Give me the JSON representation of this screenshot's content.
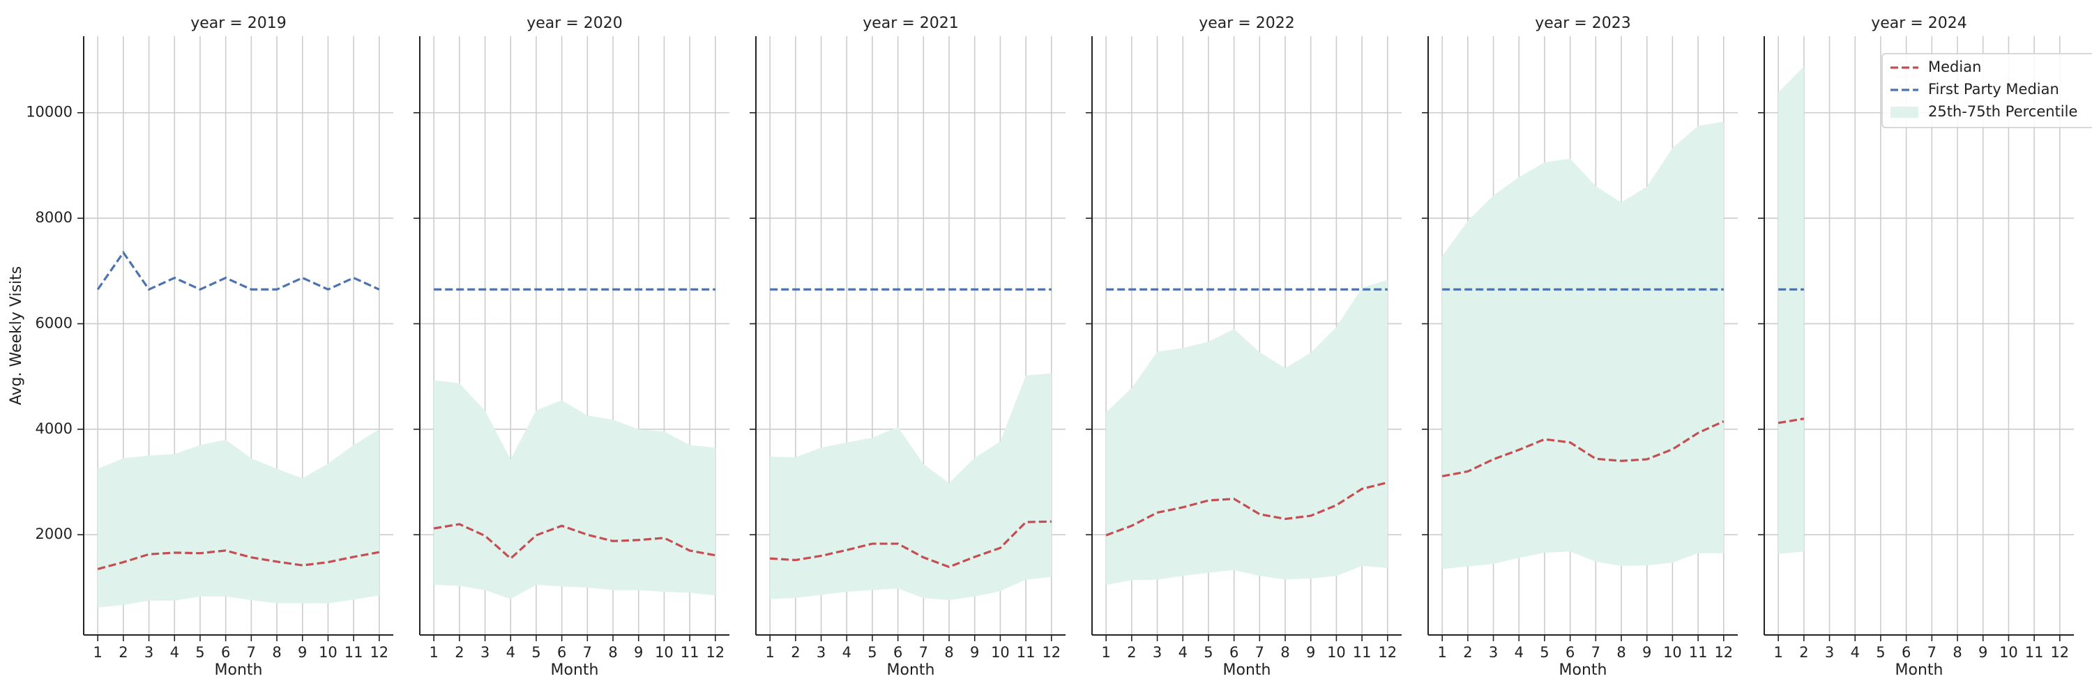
{
  "chart_data": [
    {
      "type": "line",
      "title": "year = 2019",
      "xlabel": "Month",
      "ylabel": "Avg. Weekly Visits",
      "x": [
        1,
        2,
        3,
        4,
        5,
        6,
        7,
        8,
        9,
        10,
        11,
        12
      ],
      "xticks": [
        1,
        2,
        3,
        4,
        5,
        6,
        7,
        8,
        9,
        10,
        11,
        12
      ],
      "xlim": [
        0.45,
        12.55
      ],
      "ylim": [
        100,
        11450
      ],
      "yticks": [
        2000,
        4000,
        6000,
        8000,
        10000
      ],
      "grid": true,
      "series": [
        {
          "type": "band",
          "color": "#dff2ec",
          "lower": [
            620,
            670,
            750,
            750,
            830,
            830,
            760,
            700,
            700,
            700,
            770,
            850
          ],
          "upper": [
            3250,
            3450,
            3500,
            3530,
            3700,
            3800,
            3450,
            3250,
            3070,
            3350,
            3700,
            4000
          ]
        },
        {
          "color": "#c44e52",
          "values": [
            1350,
            1480,
            1630,
            1660,
            1650,
            1700,
            1570,
            1490,
            1420,
            1480,
            1580,
            1670
          ]
        },
        {
          "color": "#4c72b0",
          "values": [
            6650,
            7350,
            6650,
            6870,
            6650,
            6870,
            6650,
            6650,
            6870,
            6650,
            6870,
            6650
          ]
        }
      ]
    },
    {
      "type": "line",
      "title": "year = 2020",
      "xlabel": "Month",
      "x": [
        1,
        2,
        3,
        4,
        5,
        6,
        7,
        8,
        9,
        10,
        11,
        12
      ],
      "xticks": [
        1,
        2,
        3,
        4,
        5,
        6,
        7,
        8,
        9,
        10,
        11,
        12
      ],
      "xlim": [
        0.45,
        12.55
      ],
      "ylim": [
        100,
        11450
      ],
      "yticks": [
        2000,
        4000,
        6000,
        8000,
        10000
      ],
      "grid": true,
      "series": [
        {
          "type": "band",
          "color": "#dff2ec",
          "lower": [
            1050,
            1030,
            950,
            780,
            1050,
            1020,
            1000,
            950,
            950,
            920,
            900,
            850
          ],
          "upper": [
            4930,
            4870,
            4350,
            3430,
            4360,
            4550,
            4260,
            4180,
            4000,
            3960,
            3700,
            3650
          ]
        },
        {
          "color": "#c44e52",
          "values": [
            2120,
            2200,
            1980,
            1550,
            1990,
            2170,
            2000,
            1880,
            1900,
            1940,
            1700,
            1610
          ]
        },
        {
          "color": "#4c72b0",
          "values": [
            6650,
            6650,
            6650,
            6650,
            6650,
            6650,
            6650,
            6650,
            6650,
            6650,
            6650,
            6650
          ]
        }
      ]
    },
    {
      "type": "line",
      "title": "year = 2021",
      "xlabel": "Month",
      "x": [
        1,
        2,
        3,
        4,
        5,
        6,
        7,
        8,
        9,
        10,
        11,
        12
      ],
      "xticks": [
        1,
        2,
        3,
        4,
        5,
        6,
        7,
        8,
        9,
        10,
        11,
        12
      ],
      "xlim": [
        0.45,
        12.55
      ],
      "ylim": [
        100,
        11450
      ],
      "yticks": [
        2000,
        4000,
        6000,
        8000,
        10000
      ],
      "grid": true,
      "series": [
        {
          "type": "band",
          "color": "#dff2ec",
          "lower": [
            780,
            800,
            860,
            920,
            950,
            980,
            800,
            760,
            830,
            930,
            1150,
            1200
          ],
          "upper": [
            3480,
            3470,
            3650,
            3750,
            3840,
            4040,
            3340,
            2980,
            3460,
            3770,
            5020,
            5060
          ]
        },
        {
          "color": "#c44e52",
          "values": [
            1550,
            1520,
            1600,
            1710,
            1830,
            1830,
            1570,
            1390,
            1580,
            1750,
            2240,
            2250
          ]
        },
        {
          "color": "#4c72b0",
          "values": [
            6650,
            6650,
            6650,
            6650,
            6650,
            6650,
            6650,
            6650,
            6650,
            6650,
            6650,
            6650
          ]
        }
      ]
    },
    {
      "type": "line",
      "title": "year = 2022",
      "xlabel": "Month",
      "x": [
        1,
        2,
        3,
        4,
        5,
        6,
        7,
        8,
        9,
        10,
        11,
        12
      ],
      "xticks": [
        1,
        2,
        3,
        4,
        5,
        6,
        7,
        8,
        9,
        10,
        11,
        12
      ],
      "xlim": [
        0.45,
        12.55
      ],
      "ylim": [
        100,
        11450
      ],
      "yticks": [
        2000,
        4000,
        6000,
        8000,
        10000
      ],
      "grid": true,
      "series": [
        {
          "type": "band",
          "color": "#dff2ec",
          "lower": [
            1050,
            1140,
            1150,
            1220,
            1280,
            1330,
            1220,
            1150,
            1170,
            1220,
            1410,
            1370
          ],
          "upper": [
            4320,
            4780,
            5470,
            5540,
            5660,
            5900,
            5460,
            5160,
            5450,
            5940,
            6680,
            6830
          ]
        },
        {
          "color": "#c44e52",
          "values": [
            1990,
            2170,
            2420,
            2520,
            2650,
            2680,
            2390,
            2300,
            2360,
            2560,
            2870,
            2990
          ]
        },
        {
          "color": "#4c72b0",
          "values": [
            6650,
            6650,
            6650,
            6650,
            6650,
            6650,
            6650,
            6650,
            6650,
            6650,
            6650,
            6650
          ]
        }
      ]
    },
    {
      "type": "line",
      "title": "year = 2023",
      "xlabel": "Month",
      "x": [
        1,
        2,
        3,
        4,
        5,
        6,
        7,
        8,
        9,
        10,
        11,
        12
      ],
      "xticks": [
        1,
        2,
        3,
        4,
        5,
        6,
        7,
        8,
        9,
        10,
        11,
        12
      ],
      "xlim": [
        0.45,
        12.55
      ],
      "ylim": [
        100,
        11450
      ],
      "yticks": [
        2000,
        4000,
        6000,
        8000,
        10000
      ],
      "grid": true,
      "series": [
        {
          "type": "band",
          "color": "#dff2ec",
          "lower": [
            1350,
            1400,
            1450,
            1560,
            1660,
            1680,
            1490,
            1410,
            1420,
            1470,
            1650,
            1650
          ],
          "upper": [
            7280,
            7950,
            8430,
            8780,
            9060,
            9130,
            8610,
            8300,
            8600,
            9330,
            9750,
            9830
          ]
        },
        {
          "color": "#c44e52",
          "values": [
            3110,
            3200,
            3430,
            3610,
            3810,
            3750,
            3440,
            3400,
            3430,
            3620,
            3930,
            4150
          ]
        },
        {
          "color": "#4c72b0",
          "values": [
            6650,
            6650,
            6650,
            6650,
            6650,
            6650,
            6650,
            6650,
            6650,
            6650,
            6650,
            6650
          ]
        }
      ]
    },
    {
      "type": "line",
      "title": "year = 2024",
      "xlabel": "Month",
      "legend": "upper right",
      "x": [
        1,
        2,
        3,
        4,
        5,
        6,
        7,
        8,
        9,
        10,
        11,
        12
      ],
      "xticks": [
        1,
        2,
        3,
        4,
        5,
        6,
        7,
        8,
        9,
        10,
        11,
        12
      ],
      "xlim": [
        0.45,
        12.55
      ],
      "ylim": [
        100,
        11450
      ],
      "yticks": [
        2000,
        4000,
        6000,
        8000,
        10000
      ],
      "grid": true,
      "series": [
        {
          "name": "Median",
          "color": "#c44e52",
          "values": [
            4120,
            4200,
            null,
            null,
            null,
            null,
            null,
            null,
            null,
            null,
            null,
            null
          ]
        },
        {
          "name": "First Party Median",
          "color": "#4c72b0",
          "values": [
            6650,
            6650,
            null,
            null,
            null,
            null,
            null,
            null,
            null,
            null,
            null,
            null
          ]
        },
        {
          "name": "25th-75th Percentile",
          "type": "band",
          "color": "#dff2ec",
          "lower": [
            1640,
            1680,
            null,
            null,
            null,
            null,
            null,
            null,
            null,
            null,
            null,
            null
          ],
          "upper": [
            10380,
            10880,
            null,
            null,
            null,
            null,
            null,
            null,
            null,
            null,
            null,
            null
          ]
        }
      ]
    }
  ]
}
